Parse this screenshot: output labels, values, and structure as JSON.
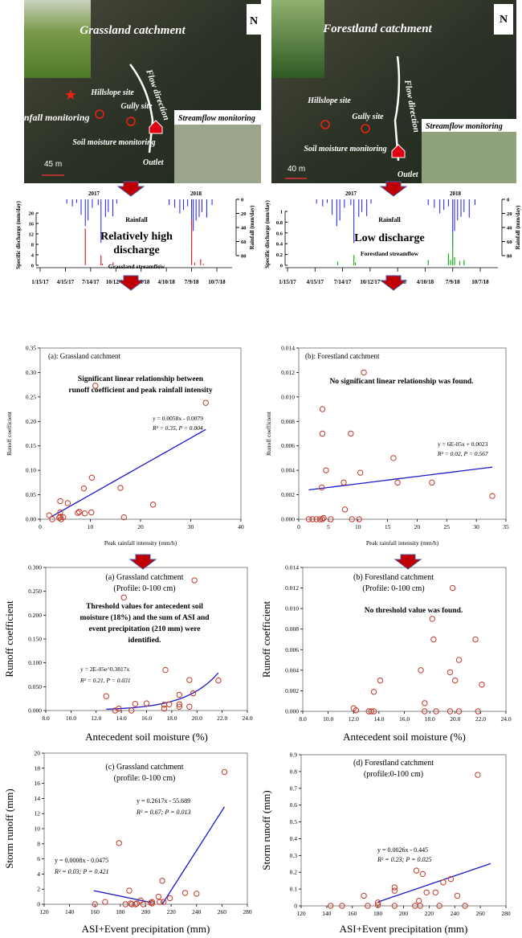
{
  "colors": {
    "rainfall": "#1a1aff",
    "grass_flow": "#e8232a",
    "forest_flow": "#22b022",
    "points": "#c0392b",
    "fit": "#1a1acc",
    "arrow": "#c00000"
  },
  "maps": [
    {
      "title": "Grassland catchment",
      "north": "N",
      "rainfall_label": "Rainfall monitoring",
      "hillslope": "Hillslope site",
      "gully": "Gully site",
      "soil": "Soil moisture monitoring",
      "flow": "Flow direction",
      "outlet": "Outlet",
      "streamflow": "Streamflow monitoring",
      "scale": "45 m"
    },
    {
      "title": "Forestland catchment",
      "north": "N",
      "hillslope": "Hillslope site",
      "gully": "Gully site",
      "soil": "Soil moisture monitoring",
      "flow": "Flow direction",
      "outlet": "Outlet",
      "streamflow": "Streamflow monitoring",
      "scale": "40 m"
    }
  ],
  "timeseries": [
    {
      "year_labels": [
        "2017",
        "2018"
      ],
      "rain_label": "Rainfall",
      "rain_axis": "Rainfall (mm/day)",
      "rain_ticks": [
        "0",
        "20",
        "40",
        "60",
        "80"
      ],
      "q_axis": "Specific discharge (mm/day)",
      "q_ticks": [
        "0",
        "4",
        "8",
        "12",
        "16",
        "20"
      ],
      "q_max": 20,
      "headline": "Relatively high discharge",
      "flow_label": "Grassland streamflow",
      "date_ticks": [
        "1/15/17",
        "4/15/17",
        "7/14/17",
        "10/12/17",
        "1/10/18",
        "4/10/18",
        "7/9/18",
        "10/7/18"
      ]
    },
    {
      "year_labels": [
        "2017",
        "2018"
      ],
      "rain_label": "Rainfall",
      "rain_axis": "Rainfall (mm/day)",
      "rain_ticks": [
        "0",
        "20",
        "40",
        "60",
        "80"
      ],
      "q_axis": "Specific discharge (mm/day)",
      "q_ticks": [
        "0",
        "0.2",
        "0.4",
        "0.6",
        "0.8",
        "1"
      ],
      "q_max": 1,
      "headline": "Low discharge",
      "flow_label": "Forestland streamflow",
      "date_ticks": [
        "1/15/17",
        "4/15/17",
        "7/14/17",
        "10/12/17",
        "1/10/18",
        "4/10/18",
        "7/9/18",
        "10/7/18"
      ]
    }
  ],
  "chart_data": [
    {
      "type": "bar",
      "panel": "grassland timeseries",
      "rainfall": [
        [
          "2017-04-20",
          6
        ],
        [
          "2017-05-10",
          10
        ],
        [
          "2017-05-25",
          5
        ],
        [
          "2017-06-10",
          22
        ],
        [
          "2017-06-25",
          38
        ],
        [
          "2017-07-05",
          30
        ],
        [
          "2017-07-20",
          12
        ],
        [
          "2017-08-10",
          8
        ],
        [
          "2017-08-20",
          62
        ],
        [
          "2017-09-05",
          25
        ],
        [
          "2017-09-15",
          18
        ],
        [
          "2017-10-01",
          24
        ],
        [
          "2017-10-15",
          6
        ],
        [
          "2018-04-20",
          8
        ],
        [
          "2018-05-10",
          12
        ],
        [
          "2018-05-28",
          20
        ],
        [
          "2018-06-10",
          15
        ],
        [
          "2018-06-25",
          10
        ],
        [
          "2018-07-09",
          68
        ],
        [
          "2018-07-15",
          45
        ],
        [
          "2018-07-25",
          30
        ],
        [
          "2018-08-05",
          25
        ],
        [
          "2018-08-15",
          18
        ],
        [
          "2018-09-01",
          26
        ],
        [
          "2018-09-20",
          8
        ]
      ],
      "streamflow": [
        [
          "2017-06-25",
          14
        ],
        [
          "2017-08-20",
          3.8
        ],
        [
          "2017-08-25",
          0.6
        ],
        [
          "2017-10-02",
          1.1
        ],
        [
          "2018-03-20",
          0.3
        ],
        [
          "2018-07-09",
          17.5
        ],
        [
          "2018-07-20",
          1
        ],
        [
          "2018-08-10",
          2.3
        ],
        [
          "2018-08-20",
          0.5
        ]
      ]
    },
    {
      "type": "bar",
      "panel": "forestland timeseries",
      "rainfall": [
        [
          "2017-04-20",
          6
        ],
        [
          "2017-05-10",
          10
        ],
        [
          "2017-05-25",
          5
        ],
        [
          "2017-06-10",
          22
        ],
        [
          "2017-06-25",
          38
        ],
        [
          "2017-07-05",
          30
        ],
        [
          "2017-07-20",
          12
        ],
        [
          "2017-08-10",
          8
        ],
        [
          "2017-08-20",
          62
        ],
        [
          "2017-09-05",
          25
        ],
        [
          "2017-09-15",
          18
        ],
        [
          "2017-10-01",
          24
        ],
        [
          "2017-10-15",
          6
        ],
        [
          "2018-04-20",
          8
        ],
        [
          "2018-05-10",
          12
        ],
        [
          "2018-05-28",
          20
        ],
        [
          "2018-06-10",
          15
        ],
        [
          "2018-06-25",
          10
        ],
        [
          "2018-07-09",
          68
        ],
        [
          "2018-07-15",
          45
        ],
        [
          "2018-07-25",
          30
        ],
        [
          "2018-08-05",
          25
        ],
        [
          "2018-08-15",
          18
        ],
        [
          "2018-09-01",
          26
        ],
        [
          "2018-09-20",
          8
        ]
      ],
      "streamflow": [
        [
          "2017-06-28",
          0.07
        ],
        [
          "2017-08-20",
          0.19
        ],
        [
          "2017-08-25",
          0.05
        ],
        [
          "2018-04-20",
          0.1
        ],
        [
          "2018-06-25",
          0.22
        ],
        [
          "2018-07-02",
          0.1
        ],
        [
          "2018-07-09",
          0.6
        ],
        [
          "2018-07-15",
          0.15
        ],
        [
          "2018-08-01",
          0.08
        ],
        [
          "2018-08-15",
          0.1
        ]
      ]
    },
    {
      "type": "scatter",
      "title": "(a): Grassland catchment",
      "annotation": [
        "Significant linear relationship between",
        "runoff coefficient and peak rainfall intensity"
      ],
      "equation": [
        "y = 0.0058x - 0.0079",
        "R² = 0.35, P = 0.004"
      ],
      "xlabel": "Peak rainfall intensity (mm/h)",
      "ylabel": "Runoff coefficient",
      "xlim": [
        0,
        40
      ],
      "xstep": 10,
      "ylim": [
        0,
        0.35
      ],
      "ystep": 0.05,
      "points": [
        [
          11,
          0.273
        ],
        [
          33,
          0.238
        ],
        [
          10.3,
          0.085
        ],
        [
          8.7,
          0.063
        ],
        [
          16,
          0.064
        ],
        [
          22.5,
          0.03
        ],
        [
          4,
          0.037
        ],
        [
          5.5,
          0.033
        ],
        [
          1.8,
          0.008
        ],
        [
          2.4,
          0
        ],
        [
          4,
          0.014
        ],
        [
          4,
          0.005
        ],
        [
          4.2,
          0
        ],
        [
          4.6,
          0.004
        ],
        [
          7.5,
          0.013
        ],
        [
          7.8,
          0.015
        ],
        [
          8.9,
          0.012
        ],
        [
          10.2,
          0.014
        ],
        [
          16.7,
          0.004
        ],
        [
          3.8,
          0.003
        ]
      ],
      "fit": {
        "kind": "linear",
        "a": 0.0058,
        "b": -0.0079,
        "range": [
          2,
          33
        ]
      }
    },
    {
      "type": "scatter",
      "title": "(b): Forestland catchment",
      "annotation": [
        "No significant linear relationship was found."
      ],
      "equation": [
        "y = 6E-05x + 0.0023",
        "R² = 0.02, P = 0.567"
      ],
      "xlabel": "Peak rainfall intensity (mm/h)",
      "ylabel": "Runoff coefficient",
      "xlim": [
        0,
        35
      ],
      "xstep": 5,
      "ylim": [
        0,
        0.014
      ],
      "ystep": 0.002,
      "points": [
        [
          11,
          0.012
        ],
        [
          4,
          0.009
        ],
        [
          4,
          0.007
        ],
        [
          8.8,
          0.007
        ],
        [
          16,
          0.005
        ],
        [
          4.6,
          0.004
        ],
        [
          10.4,
          0.0038
        ],
        [
          7.6,
          0.003
        ],
        [
          16.7,
          0.003
        ],
        [
          22.5,
          0.003
        ],
        [
          3.9,
          0.0026
        ],
        [
          32.7,
          0.0019
        ],
        [
          7.8,
          0.0008
        ],
        [
          1.7,
          0
        ],
        [
          2.3,
          0
        ],
        [
          3,
          0
        ],
        [
          3.6,
          0
        ],
        [
          4,
          0
        ],
        [
          4.2,
          0.0001
        ],
        [
          5.4,
          0
        ],
        [
          9,
          0
        ],
        [
          10.2,
          0
        ]
      ],
      "fit": {
        "kind": "linear",
        "a": 6e-05,
        "b": 0.0023,
        "range": [
          1.7,
          32.7
        ]
      }
    },
    {
      "type": "scatter",
      "title": "(a) Grassland catchment",
      "subtitle": "(Profile: 0-100 cm)",
      "annotation": [
        "Threshold values for antecedent soil",
        "moisture (18%) and the sum of ASI and",
        "event precipitation (210 mm) were",
        "identified."
      ],
      "equation": [
        "y = 2E-05e^0.3817x",
        "R² = 0.21, P = 0.031"
      ],
      "xlabel": "Antecedent soil moisture (%)",
      "ylabel": "Runoff coefficient",
      "xlim": [
        8,
        24
      ],
      "xstep": 2,
      "ylim": [
        0,
        0.3
      ],
      "ystep": 0.05,
      "points": [
        [
          19.8,
          0.273
        ],
        [
          14.2,
          0.237
        ],
        [
          17.5,
          0.085
        ],
        [
          19.4,
          0.064
        ],
        [
          21.7,
          0.063
        ],
        [
          18.6,
          0.033
        ],
        [
          19.7,
          0.036
        ],
        [
          12.8,
          0.03
        ],
        [
          13.5,
          0
        ],
        [
          13.8,
          0.004
        ],
        [
          14.8,
          0
        ],
        [
          15.1,
          0.014
        ],
        [
          16,
          0.015
        ],
        [
          17.4,
          0.012
        ],
        [
          17.4,
          0.004
        ],
        [
          17.8,
          0.013
        ],
        [
          18.6,
          0.013
        ],
        [
          18.6,
          0.008
        ],
        [
          19.4,
          0.008
        ]
      ],
      "fit": {
        "kind": "exp",
        "a": 2e-05,
        "b": 0.3817,
        "range": [
          12.8,
          21.7
        ]
      }
    },
    {
      "type": "scatter",
      "title": "(b) Forestland catchment",
      "subtitle": "(Profile: 0-100 cm)",
      "annotation": [
        "No threshold value was found."
      ],
      "xlabel": "Antecedent soil moisture (%)",
      "ylabel": "Runoff coefficient",
      "xlim": [
        8,
        24
      ],
      "xstep": 2,
      "ylim": [
        0,
        0.014
      ],
      "ystep": 0.002,
      "points": [
        [
          19.8,
          0.012
        ],
        [
          18.2,
          0.009
        ],
        [
          18.3,
          0.007
        ],
        [
          21.6,
          0.007
        ],
        [
          20.3,
          0.005
        ],
        [
          17.3,
          0.004
        ],
        [
          19.6,
          0.0038
        ],
        [
          20,
          0.003
        ],
        [
          14.1,
          0.003
        ],
        [
          22.1,
          0.0026
        ],
        [
          13.6,
          0.0019
        ],
        [
          12,
          0.0003
        ],
        [
          12.2,
          0.0001
        ],
        [
          13.2,
          0
        ],
        [
          13.4,
          0
        ],
        [
          13.6,
          0
        ],
        [
          17.6,
          0.0008
        ],
        [
          17.6,
          0
        ],
        [
          18.5,
          0
        ],
        [
          19.6,
          0
        ],
        [
          20.3,
          0
        ],
        [
          21.8,
          0
        ]
      ]
    },
    {
      "type": "scatter",
      "title": "(c) Grassland catchment",
      "subtitle": "(profile: 0-100 cm)",
      "equation": [
        "y = 0.2617x - 55.689",
        "R² = 0.67; P = 0.013"
      ],
      "equation2": [
        "y = 0.0008x - 0.0475",
        "R² = 0.03; P = 0.421"
      ],
      "xlabel": "ASI+Event precipitation (mm)",
      "ylabel": "Storm runoff (mm)",
      "xlim": [
        120,
        280
      ],
      "xstep": 20,
      "ylim": [
        0,
        20
      ],
      "ystep": 2,
      "points": [
        [
          262,
          17.5
        ],
        [
          179,
          8.1
        ],
        [
          213,
          3.1
        ],
        [
          187,
          1.8
        ],
        [
          231,
          1.5
        ],
        [
          240,
          1.4
        ],
        [
          210,
          1.0
        ],
        [
          219,
          0.8
        ],
        [
          196,
          0.5
        ],
        [
          205,
          0.3
        ],
        [
          160,
          0
        ],
        [
          168,
          0.3
        ],
        [
          184,
          0
        ],
        [
          188,
          0.1
        ],
        [
          189,
          0
        ],
        [
          192,
          0
        ],
        [
          193,
          0.1
        ],
        [
          198,
          0
        ],
        [
          204,
          0.2
        ],
        [
          205,
          0.1
        ],
        [
          211,
          0.3
        ],
        [
          214,
          0.3
        ]
      ],
      "fit_segments": [
        [
          [
            159,
            1.8
          ],
          [
            205,
            0.2
          ]
        ],
        [
          [
            213,
            0
          ],
          [
            262,
            12.9
          ]
        ]
      ]
    },
    {
      "type": "scatter",
      "title": "(d) Forestland catchment",
      "subtitle": "(profile:0-100 cm)",
      "equation": [
        "y = 0.0026x - 0.445",
        "R² = 0.23; P = 0.025"
      ],
      "xlabel": "ASI+Event precipitation (mm)",
      "ylabel": "Storm runoff (mm)",
      "xlim": [
        120,
        280
      ],
      "xstep": 20,
      "ylim": [
        0,
        0.9
      ],
      "ystep": 0.1,
      "points": [
        [
          258,
          0.78
        ],
        [
          210,
          0.21
        ],
        [
          215,
          0.19
        ],
        [
          237,
          0.16
        ],
        [
          231,
          0.14
        ],
        [
          193,
          0.11
        ],
        [
          193,
          0.09
        ],
        [
          169,
          0.06
        ],
        [
          218,
          0.08
        ],
        [
          225,
          0.08
        ],
        [
          242,
          0.06
        ],
        [
          212,
          0.03
        ],
        [
          180,
          0.02
        ],
        [
          143,
          0
        ],
        [
          152,
          0
        ],
        [
          172,
          0
        ],
        [
          180,
          0.005
        ],
        [
          193,
          0
        ],
        [
          209,
          0
        ],
        [
          213,
          0
        ],
        [
          228,
          0
        ],
        [
          248,
          0
        ]
      ],
      "fit": {
        "kind": "linear",
        "a": 0.0026,
        "b": -0.445,
        "range": [
          180,
          268
        ]
      }
    }
  ]
}
